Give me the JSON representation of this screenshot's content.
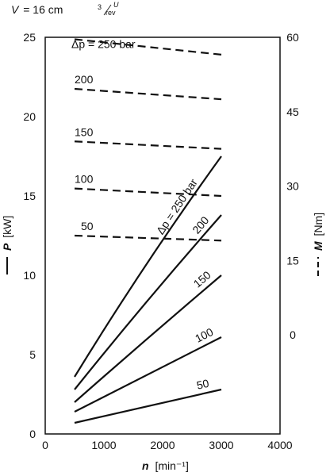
{
  "header": {
    "v_label": "V",
    "v_value": "= 16 cm",
    "v_unit_exp": "3",
    "v_unit_num": "U",
    "v_unit_den": "rev"
  },
  "chart_data": {
    "type": "line",
    "x_axis": {
      "symbol": "n",
      "unit": "[min⁻¹]",
      "range": [
        0,
        4000
      ],
      "ticks": [
        "0",
        "1000",
        "2000",
        "3000",
        "4000"
      ]
    },
    "y_axis_left": {
      "symbol": "P",
      "unit": "[kW]",
      "range": [
        0,
        25
      ],
      "ticks": [
        "0",
        "5",
        "10",
        "15",
        "20",
        "25"
      ]
    },
    "y_axis_right": {
      "symbol": "M",
      "unit": "[Nm]",
      "range": [
        -20,
        60
      ],
      "ticks": [
        "0",
        "15",
        "30",
        "45",
        "60"
      ]
    },
    "power_series": [
      {
        "label": "Δp = 250 bar",
        "x": [
          500,
          3000
        ],
        "y": [
          3.6,
          17.5
        ]
      },
      {
        "label": "200",
        "x": [
          500,
          3000
        ],
        "y": [
          2.8,
          13.8
        ]
      },
      {
        "label": "150",
        "x": [
          500,
          3000
        ],
        "y": [
          2.0,
          10.0
        ]
      },
      {
        "label": "100",
        "x": [
          500,
          3000
        ],
        "y": [
          1.4,
          6.1
        ]
      },
      {
        "label": "50",
        "x": [
          500,
          3000
        ],
        "y": [
          0.7,
          2.8
        ]
      }
    ],
    "torque_series": [
      {
        "label": "Δp = 250 bar",
        "x": [
          500,
          3000
        ],
        "y": [
          59.6,
          56.5
        ]
      },
      {
        "label": "200",
        "x": [
          500,
          3000
        ],
        "y": [
          49.6,
          47.5
        ]
      },
      {
        "label": "150",
        "x": [
          500,
          3000
        ],
        "y": [
          39.0,
          37.5
        ]
      },
      {
        "label": "100",
        "x": [
          500,
          3000
        ],
        "y": [
          29.5,
          28.0
        ]
      },
      {
        "label": "50",
        "x": [
          500,
          3000
        ],
        "y": [
          20.0,
          19.0
        ]
      }
    ],
    "grid": false,
    "left_legend_style": "solid",
    "right_legend_style": "dashed"
  }
}
